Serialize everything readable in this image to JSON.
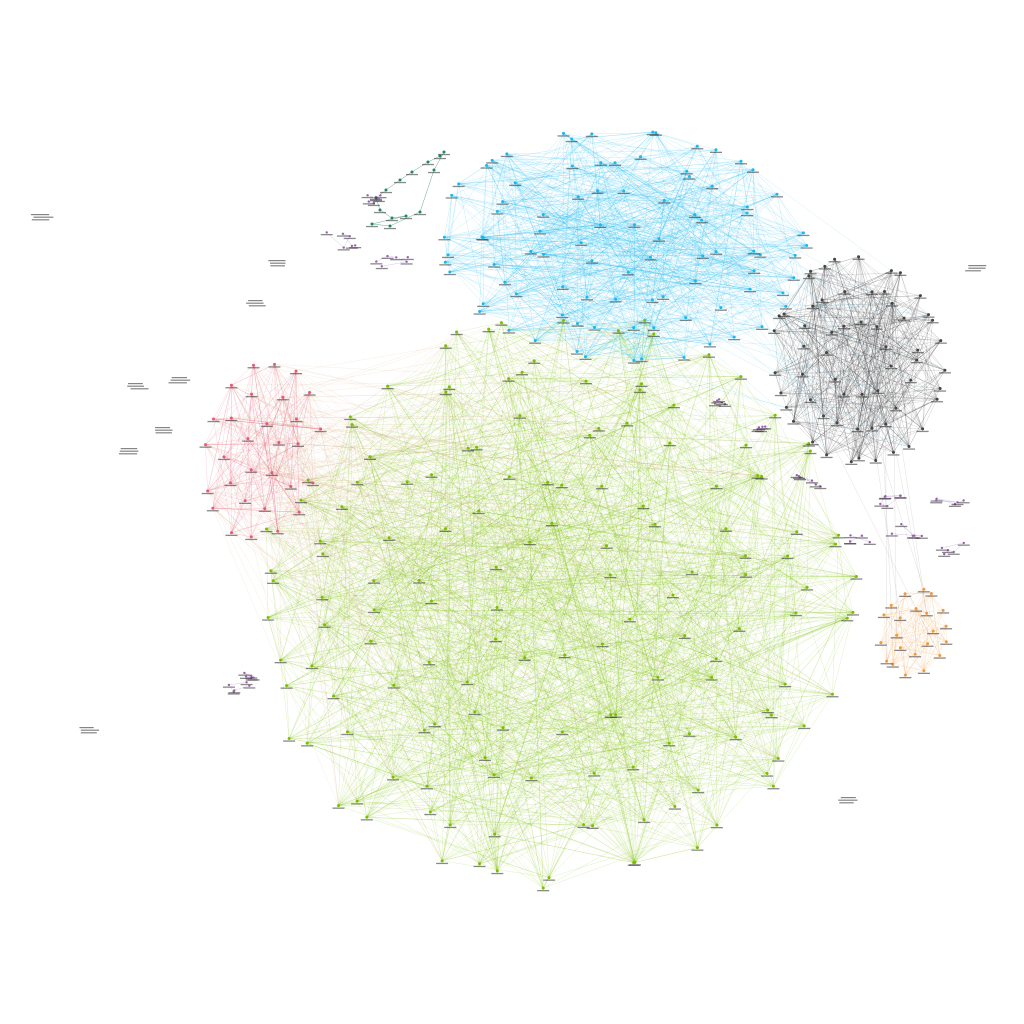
{
  "canvas": {
    "background": "#ffffff"
  },
  "clusters": [
    {
      "id": "green",
      "color": "#7ac000",
      "edge_color": "#7ac000",
      "layout": "large-ellipse",
      "node_count": 150
    },
    {
      "id": "blue",
      "color": "#19b8ee",
      "edge_color": "#19b8ee",
      "layout": "ellipse",
      "node_count": 90
    },
    {
      "id": "dark",
      "color": "#444444",
      "edge_color": "#3a3a3a",
      "layout": "ellipse",
      "node_count": 60
    },
    {
      "id": "pink",
      "color": "#e8587a",
      "edge_color": "#e8587a",
      "layout": "ellipse",
      "node_count": 30
    },
    {
      "id": "orange",
      "color": "#f09a3a",
      "edge_color": "#f5a04a",
      "layout": "ellipse",
      "node_count": 22
    },
    {
      "id": "teal",
      "color": "#1e8a5a",
      "edge_color": "#1e8a5a",
      "layout": "chain",
      "node_count": 14
    },
    {
      "id": "purple",
      "color": "#9a5fb0",
      "edge_color": "#b47fd0",
      "layout": "scatter",
      "node_count": 70
    }
  ],
  "isolated_groups": 9,
  "edge_style": {
    "opacity": 0.35,
    "width": 0.35
  }
}
